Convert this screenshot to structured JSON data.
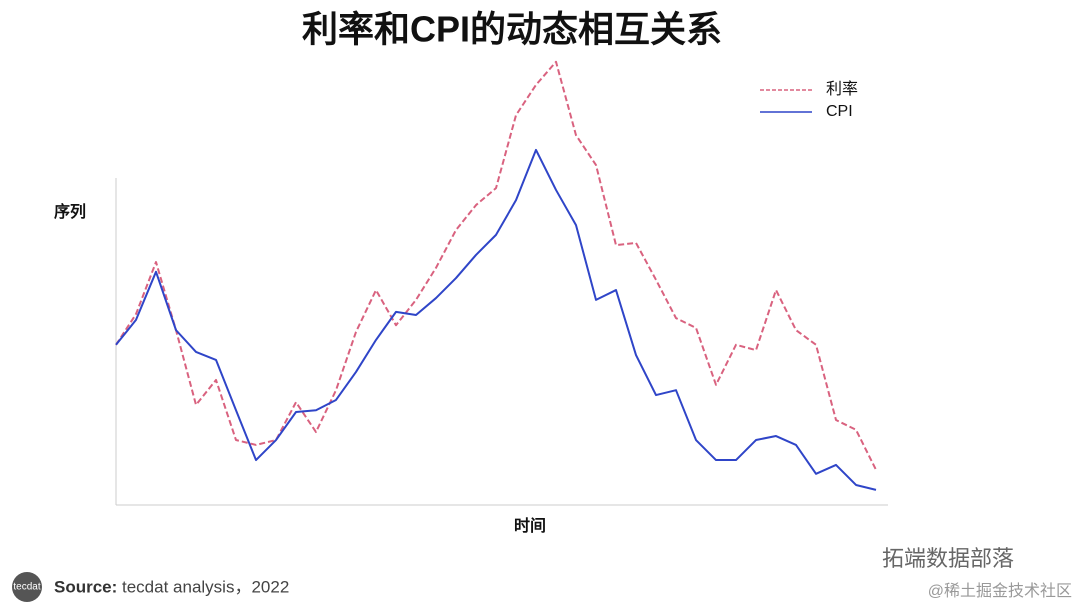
{
  "chart_data": {
    "type": "line",
    "title": "利率和CPI的动态相互关系",
    "y_label": "序列",
    "x_label": "时间",
    "ylim": [
      0,
      100
    ],
    "series": [
      {
        "name": "利率",
        "color": "#d9627f",
        "style": "dashed",
        "values": [
          36.0,
          42.9,
          54.6,
          39.3,
          22.5,
          28.1,
          14.6,
          13.5,
          14.6,
          23.1,
          16.4,
          25.8,
          38.9,
          48.3,
          40.4,
          46.1,
          53.3,
          61.8,
          67.4,
          71.2,
          87.6,
          94.4,
          99.6,
          83.1,
          76.4,
          58.4,
          58.9,
          50.6,
          42.0,
          39.8,
          27.0,
          36.0,
          34.8,
          48.3,
          39.3,
          36.0,
          19.1,
          16.9,
          7.9
        ]
      },
      {
        "name": "CPI",
        "color": "#2f45c8",
        "style": "solid",
        "values": [
          36.0,
          41.6,
          52.4,
          39.3,
          34.4,
          32.6,
          21.3,
          10.1,
          14.6,
          20.9,
          21.3,
          23.6,
          29.9,
          37.1,
          43.4,
          42.7,
          46.5,
          51.0,
          56.2,
          60.7,
          68.5,
          79.8,
          70.8,
          62.9,
          46.1,
          48.3,
          33.7,
          24.7,
          25.8,
          14.6,
          10.1,
          10.1,
          14.6,
          15.5,
          13.5,
          7.0,
          9.0,
          4.5,
          3.4
        ]
      }
    ],
    "legend": "upper-right"
  },
  "footer": {
    "logo": "tecdat",
    "source_label": "Source:",
    "source_text": "tecdat analysis，2022"
  },
  "watermark": {
    "account": "拓端数据部落",
    "site": "@稀土掘金技术社区"
  }
}
